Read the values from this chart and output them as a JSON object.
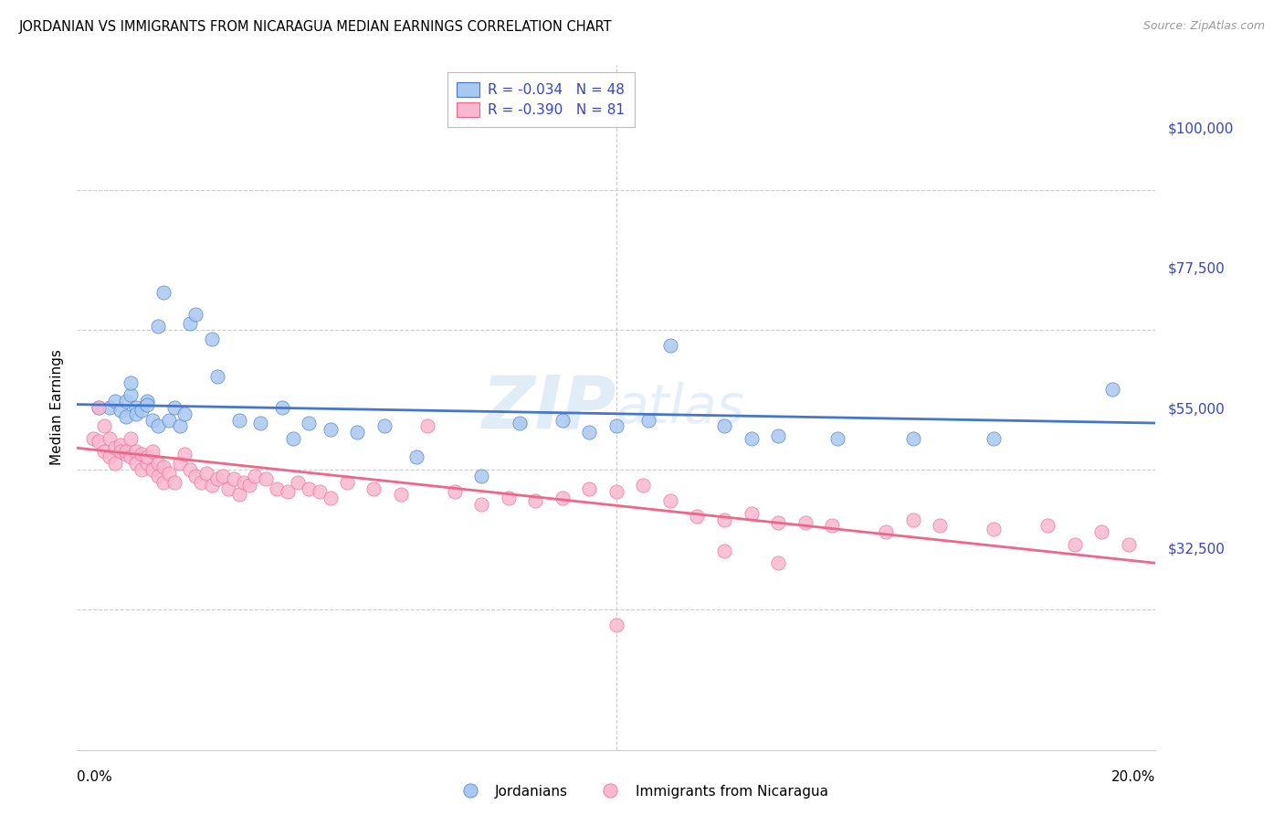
{
  "title": "JORDANIAN VS IMMIGRANTS FROM NICARAGUA MEDIAN EARNINGS CORRELATION CHART",
  "source": "Source: ZipAtlas.com",
  "ylabel": "Median Earnings",
  "xmin": 0.0,
  "xmax": 0.2,
  "ymin": 0,
  "ymax": 110000,
  "blue_color": "#a8c8f0",
  "pink_color": "#f9b8d0",
  "blue_line_color": "#4477cc",
  "pink_line_color": "#ee6688",
  "legend_text_color": "#3344cc",
  "R_blue": -0.034,
  "N_blue": 48,
  "R_pink": -0.39,
  "N_pink": 81,
  "watermark_zip": "ZIP",
  "watermark_atlas": "atlas",
  "grid_color": "#cccccc",
  "background_color": "#ffffff",
  "title_fontsize": 10.5,
  "ytick_positions": [
    32500,
    55000,
    77500,
    100000
  ],
  "ytick_labels": [
    "$32,500",
    "$55,000",
    "$77,500",
    "$100,000"
  ],
  "grid_y_positions": [
    22500,
    45000,
    67500,
    90000,
    112500
  ],
  "blue_x": [
    0.004,
    0.006,
    0.007,
    0.008,
    0.009,
    0.009,
    0.01,
    0.01,
    0.011,
    0.011,
    0.012,
    0.013,
    0.013,
    0.014,
    0.015,
    0.015,
    0.016,
    0.017,
    0.018,
    0.019,
    0.02,
    0.021,
    0.022,
    0.025,
    0.026,
    0.03,
    0.034,
    0.038,
    0.04,
    0.043,
    0.047,
    0.052,
    0.057,
    0.063,
    0.075,
    0.082,
    0.09,
    0.095,
    0.1,
    0.106,
    0.11,
    0.12,
    0.125,
    0.13,
    0.141,
    0.155,
    0.17,
    0.192
  ],
  "blue_y": [
    55000,
    55000,
    56000,
    54500,
    56000,
    53500,
    57000,
    59000,
    55000,
    54000,
    54500,
    56000,
    55500,
    53000,
    52000,
    68000,
    73500,
    53000,
    55000,
    52000,
    54000,
    68500,
    70000,
    66000,
    60000,
    53000,
    52500,
    55000,
    50000,
    52500,
    51500,
    51000,
    52000,
    47000,
    44000,
    52500,
    53000,
    51000,
    52000,
    53000,
    65000,
    52000,
    50000,
    50500,
    50000,
    50000,
    50000,
    58000
  ],
  "pink_x": [
    0.003,
    0.004,
    0.004,
    0.005,
    0.005,
    0.006,
    0.006,
    0.007,
    0.007,
    0.008,
    0.008,
    0.009,
    0.009,
    0.01,
    0.01,
    0.011,
    0.011,
    0.012,
    0.012,
    0.013,
    0.013,
    0.014,
    0.014,
    0.015,
    0.015,
    0.016,
    0.016,
    0.017,
    0.018,
    0.019,
    0.02,
    0.021,
    0.022,
    0.023,
    0.024,
    0.025,
    0.026,
    0.027,
    0.028,
    0.029,
    0.03,
    0.031,
    0.032,
    0.033,
    0.035,
    0.037,
    0.039,
    0.041,
    0.043,
    0.045,
    0.047,
    0.05,
    0.055,
    0.06,
    0.065,
    0.07,
    0.075,
    0.08,
    0.085,
    0.09,
    0.095,
    0.1,
    0.105,
    0.11,
    0.115,
    0.12,
    0.125,
    0.13,
    0.135,
    0.14,
    0.15,
    0.155,
    0.16,
    0.17,
    0.18,
    0.185,
    0.19,
    0.195,
    0.1,
    0.12,
    0.13
  ],
  "pink_y": [
    50000,
    49500,
    55000,
    48000,
    52000,
    50000,
    47000,
    48500,
    46000,
    49000,
    48000,
    47500,
    48000,
    47000,
    50000,
    48000,
    46000,
    47500,
    45000,
    46000,
    47000,
    45000,
    48000,
    46000,
    44000,
    45500,
    43000,
    44500,
    43000,
    46000,
    47500,
    45000,
    44000,
    43000,
    44500,
    42500,
    43500,
    44000,
    42000,
    43500,
    41000,
    43000,
    42500,
    44000,
    43500,
    42000,
    41500,
    43000,
    42000,
    41500,
    40500,
    43000,
    42000,
    41000,
    52000,
    41500,
    39500,
    40500,
    40000,
    40500,
    42000,
    41500,
    42500,
    40000,
    37500,
    37000,
    38000,
    36500,
    36500,
    36000,
    35000,
    37000,
    36000,
    35500,
    36000,
    33000,
    35000,
    33000,
    20000,
    32000,
    30000
  ]
}
